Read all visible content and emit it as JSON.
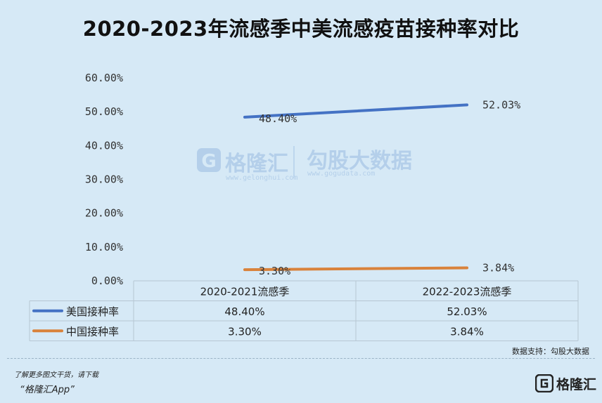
{
  "title": "2020-2023年流感季中美流感疫苗接种率对比",
  "chart_data": {
    "type": "line",
    "title": "2020-2023年流感季中美流感疫苗接种率对比",
    "categories": [
      "2020-2021流感季",
      "2022-2023流感季"
    ],
    "series": [
      {
        "name": "美国接种率",
        "values": [
          48.4,
          52.03
        ],
        "labels": [
          "48.40%",
          "52.03%"
        ],
        "color": "#4472c4"
      },
      {
        "name": "中国接种率",
        "values": [
          3.3,
          3.84
        ],
        "labels": [
          "3.30%",
          "3.84%"
        ],
        "color": "#d9823b"
      }
    ],
    "ylim": [
      0,
      60
    ],
    "yticks": [
      0,
      10,
      20,
      30,
      40,
      50,
      60
    ],
    "ytick_labels": [
      "0.00%",
      "10.00%",
      "20.00%",
      "30.00%",
      "40.00%",
      "50.00%",
      "60.00%"
    ],
    "grid": false,
    "data_table": true
  },
  "watermark": {
    "left_main": "格隆汇",
    "left_sub": "www.gelonghui.com",
    "right_main": "勾股大数据",
    "right_sub": "www.gogudata.com"
  },
  "source": "数据支持：勾股大数据",
  "footer": {
    "note": "了解更多图文干货，请下载",
    "app": "“格隆汇App”"
  },
  "logo": {
    "text": "格隆汇",
    "icon": "g-logo-icon"
  }
}
